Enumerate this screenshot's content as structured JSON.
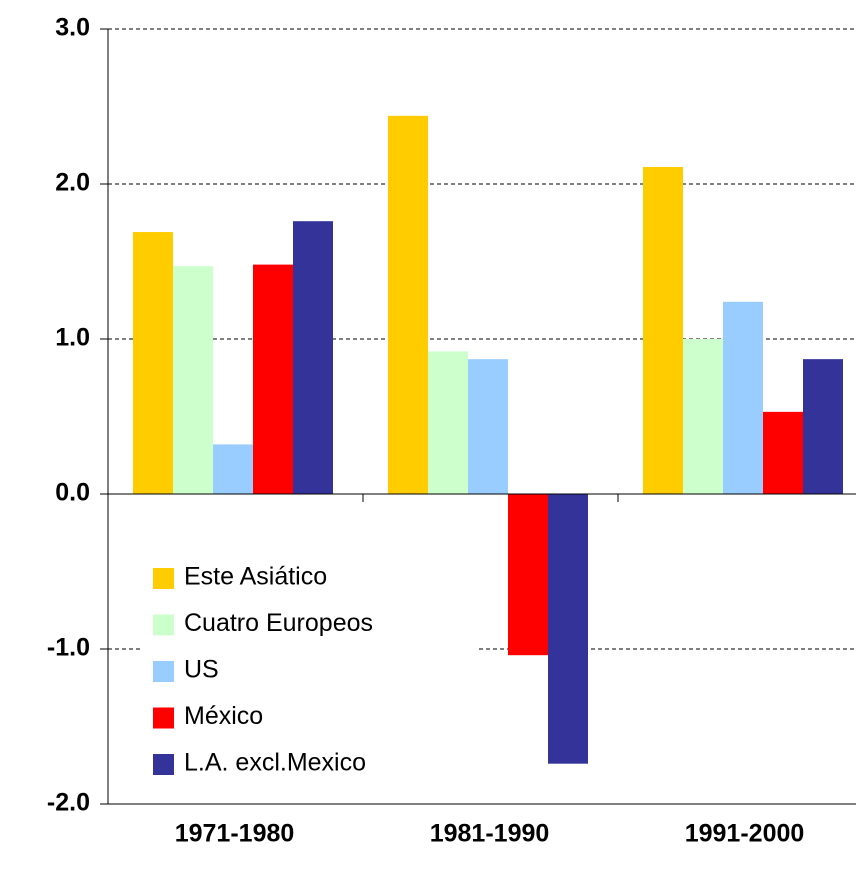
{
  "chart_data": {
    "type": "bar",
    "categories": [
      "1971-1980",
      "1981-1990",
      "1991-2000"
    ],
    "series": [
      {
        "name": "Este Asiático",
        "color": "#ffcc00",
        "values": [
          1.69,
          2.44,
          2.11
        ]
      },
      {
        "name": "Cuatro Europeos",
        "color": "#ccffcc",
        "values": [
          1.47,
          0.92,
          1.0
        ]
      },
      {
        "name": "US",
        "color": "#99ccff",
        "values": [
          0.32,
          0.87,
          1.24
        ]
      },
      {
        "name": "México",
        "color": "#ff0000",
        "values": [
          1.48,
          -1.04,
          0.53
        ]
      },
      {
        "name": "L.A. excl.Mexico",
        "color": "#333399",
        "values": [
          1.76,
          -1.74,
          0.87
        ]
      }
    ],
    "ylim": [
      -2,
      3
    ],
    "yticks": [
      {
        "value": -2,
        "label": "-2.0"
      },
      {
        "value": -1,
        "label": "-1.0"
      },
      {
        "value": 0,
        "label": "0.0"
      },
      {
        "value": 1,
        "label": "1.0"
      },
      {
        "value": 2,
        "label": "2.0"
      },
      {
        "value": 3,
        "label": "3.0"
      }
    ],
    "grid": true
  }
}
